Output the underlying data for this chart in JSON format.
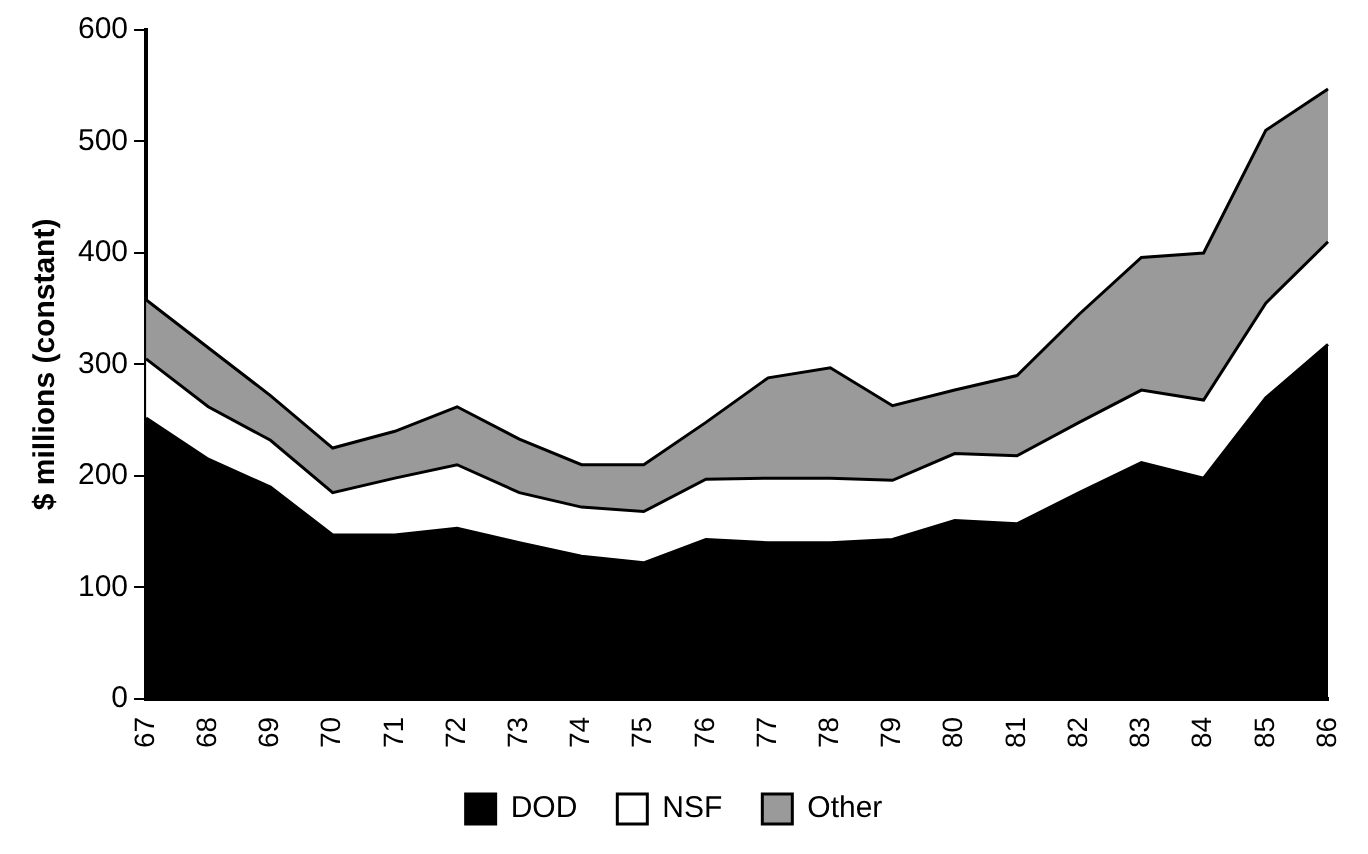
{
  "chart_data": {
    "type": "area",
    "stacked": true,
    "ylabel": "$ millions (constant)",
    "categories": [
      "67",
      "68",
      "69",
      "70",
      "71",
      "72",
      "73",
      "74",
      "75",
      "76",
      "77",
      "78",
      "79",
      "80",
      "81",
      "82",
      "83",
      "84",
      "85",
      "86"
    ],
    "series": [
      {
        "name": "DOD",
        "color": "#000000",
        "values": [
          252,
          215,
          190,
          147,
          147,
          153,
          140,
          128,
          122,
          143,
          140,
          140,
          143,
          160,
          157,
          185,
          212,
          198,
          270,
          318
        ]
      },
      {
        "name": "NSF",
        "color": "#ffffff",
        "values": [
          53,
          47,
          42,
          38,
          51,
          57,
          45,
          44,
          46,
          54,
          58,
          58,
          53,
          60,
          61,
          63,
          65,
          70,
          85,
          92
        ]
      },
      {
        "name": "Other",
        "color": "#9a9a9a",
        "values": [
          53,
          53,
          40,
          40,
          42,
          52,
          48,
          38,
          42,
          51,
          90,
          99,
          67,
          57,
          72,
          97,
          119,
          132,
          155,
          137
        ]
      }
    ],
    "ylim": [
      0,
      600
    ],
    "yticks": [
      0,
      100,
      200,
      300,
      400,
      500,
      600
    ],
    "grid": false,
    "legend": "bottom"
  }
}
